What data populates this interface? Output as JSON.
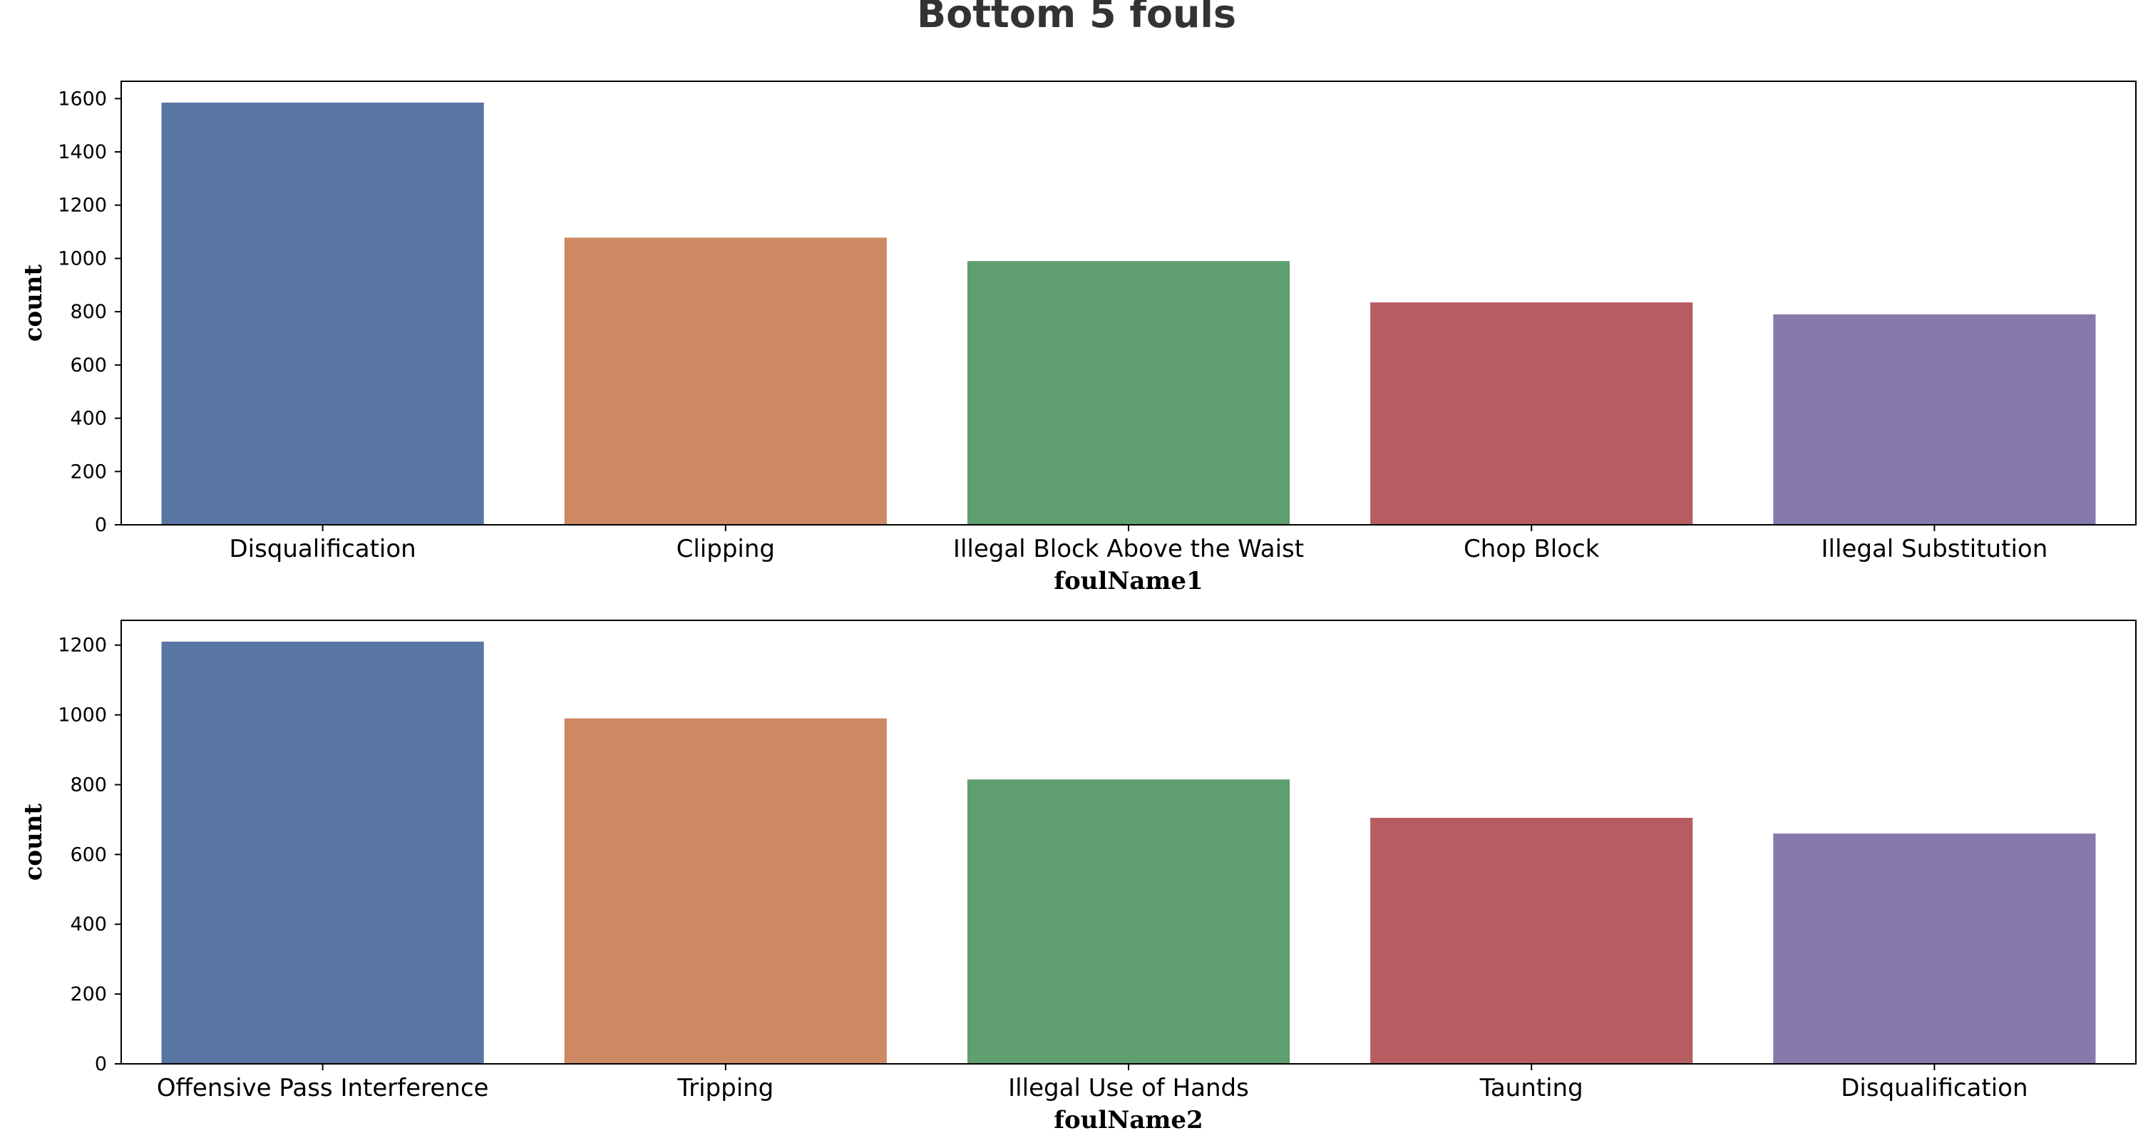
{
  "figure_title": "Bottom 5 fouls",
  "palette": [
    "#5875a4",
    "#cc8963",
    "#5f9e6e",
    "#b55d60",
    "#857aab"
  ],
  "chart_data": [
    {
      "type": "bar",
      "xlabel": "foulName1",
      "ylabel": "count",
      "categories": [
        "Disqualification",
        "Clipping",
        "Illegal Block Above the Waist",
        "Chop Block",
        "Illegal Substitution"
      ],
      "values": [
        1585,
        1078,
        990,
        835,
        790
      ],
      "ylim": [
        0,
        1665
      ],
      "yticks": [
        0,
        200,
        400,
        600,
        800,
        1000,
        1200,
        1400,
        1600
      ],
      "grid": false,
      "legend": "none"
    },
    {
      "type": "bar",
      "xlabel": "foulName2",
      "ylabel": "count",
      "categories": [
        "Offensive Pass Interference",
        "Tripping",
        "Illegal Use of Hands",
        "Taunting",
        "Disqualification"
      ],
      "values": [
        1210,
        990,
        815,
        705,
        660
      ],
      "ylim": [
        0,
        1271
      ],
      "yticks": [
        0,
        200,
        400,
        600,
        800,
        1000,
        1200
      ],
      "grid": false,
      "legend": "none"
    }
  ]
}
